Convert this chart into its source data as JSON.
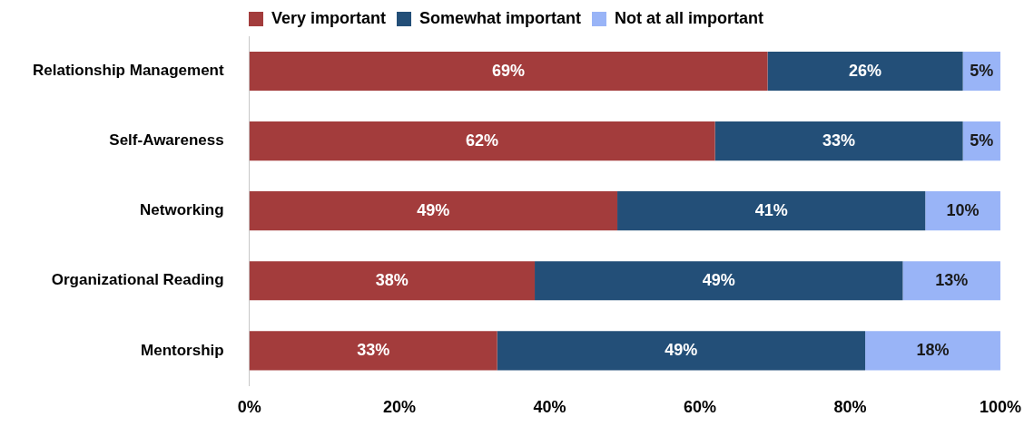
{
  "chart_data": {
    "type": "bar",
    "orientation": "horizontal",
    "stacked": true,
    "legend": "top",
    "grid": false,
    "categories": [
      "Relationship Management",
      "Self-Awareness",
      "Networking",
      "Organizational Reading",
      "Mentorship"
    ],
    "series": [
      {
        "name": "Very important",
        "color": "#a33c3c",
        "values": [
          69,
          62,
          49,
          38,
          33
        ],
        "value_labels": [
          "69%",
          "62%",
          "49%",
          "38%",
          "33%"
        ]
      },
      {
        "name": "Somewhat important",
        "color": "#234f78",
        "values": [
          26,
          33,
          41,
          49,
          49
        ],
        "value_labels": [
          "26%",
          "33%",
          "41%",
          "49%",
          "49%"
        ]
      },
      {
        "name": "Not at all important",
        "color": "#99b4f7",
        "values": [
          5,
          5,
          10,
          13,
          18
        ],
        "value_labels": [
          "5%",
          "5%",
          "10%",
          "13%",
          "18%"
        ]
      }
    ],
    "xlim": [
      0,
      100
    ],
    "xticks": [
      {
        "value": 0,
        "label": "0%"
      },
      {
        "value": 20,
        "label": "20%"
      },
      {
        "value": 40,
        "label": "40%"
      },
      {
        "value": 60,
        "label": "60%"
      },
      {
        "value": 80,
        "label": "80%"
      },
      {
        "value": 100,
        "label": "100%"
      }
    ]
  }
}
